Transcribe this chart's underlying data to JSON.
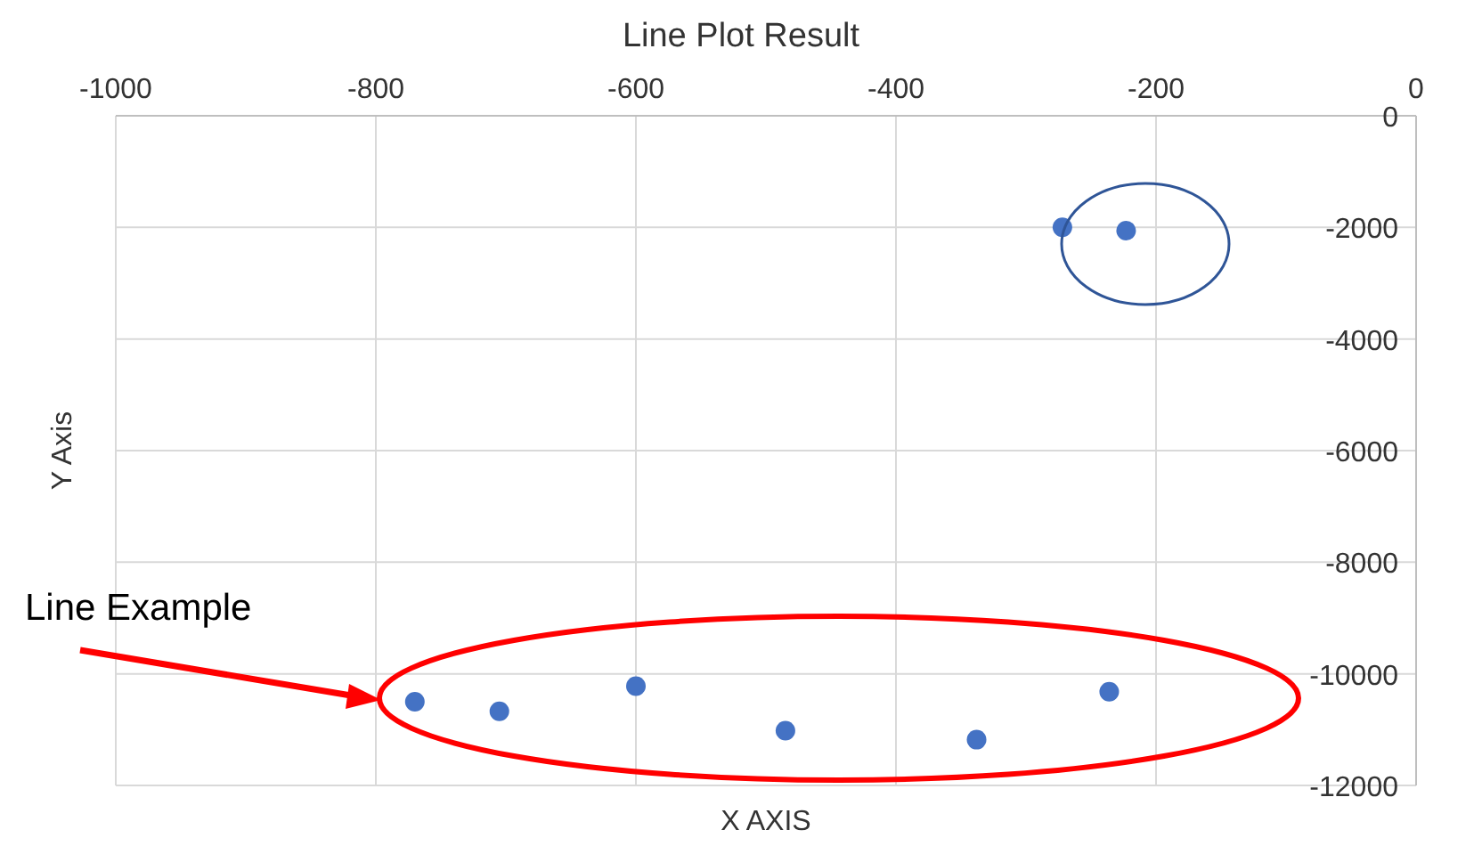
{
  "chart_data": {
    "type": "scatter",
    "title": "Line Plot Result",
    "xlabel": "X AXIS",
    "ylabel": "Y Axis",
    "x": [
      -272,
      -223,
      -770,
      -705,
      -600,
      -485,
      -338,
      -236
    ],
    "values": [
      -2000,
      -2060,
      -10500,
      -10670,
      -10220,
      -11020,
      -11180,
      -10320
    ],
    "color": "#4472c4",
    "marker": "circle",
    "grid": true,
    "xlim": [
      -1000,
      0
    ],
    "xticks": [
      -1000,
      -800,
      -600,
      -400,
      -200,
      0
    ],
    "ylim": [
      -12000,
      0
    ],
    "yticks": [
      -12000,
      -10000,
      -8000,
      -6000,
      -4000,
      -2000,
      0
    ],
    "annotations": [
      "Line Example"
    ]
  }
}
